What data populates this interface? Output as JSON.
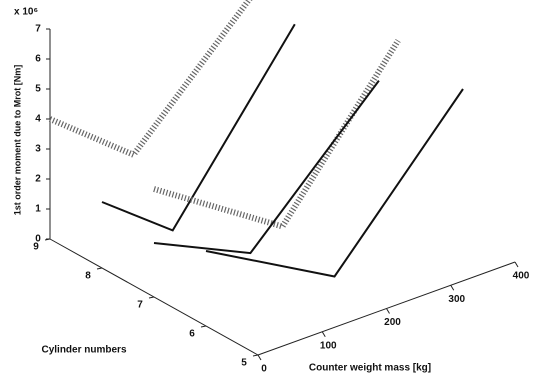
{
  "chart_data": {
    "type": "line3d",
    "z_label": "1st order moment due to Mrot [Nm]",
    "z_multiplier": "x 10⁶",
    "y_label": "Cylinder numbers",
    "x_label": "Counter weight mass [kg]",
    "xlim": [
      0,
      400
    ],
    "xticks": [
      0,
      100,
      200,
      300,
      400
    ],
    "ylim": [
      5,
      9
    ],
    "yticks": [
      5,
      6,
      7,
      8,
      9
    ],
    "zlim": [
      0,
      7
    ],
    "zticks": [
      0,
      1,
      2,
      3,
      4,
      5,
      6,
      7
    ],
    "series": [
      {
        "cylinder": 9,
        "style": "hatched",
        "color": "#666666",
        "x": [
          0,
          130,
          330
        ],
        "values": [
          4.0,
          1.8,
          6.0
        ]
      },
      {
        "cylinder": 8,
        "style": "solid",
        "color": "#111111",
        "x": [
          0,
          110,
          300
        ],
        "values": [
          2.2,
          0.4,
          5.8
        ]
      },
      {
        "cylinder": 7,
        "style": "hatched",
        "color": "#666666",
        "x": [
          0,
          200,
          380
        ],
        "values": [
          3.6,
          0.8,
          5.6
        ]
      },
      {
        "cylinder": 7,
        "style": "solid",
        "color": "#111111",
        "x": [
          0,
          150,
          350
        ],
        "values": [
          1.8,
          0.3,
          4.5
        ]
      },
      {
        "cylinder": 6,
        "style": "solid",
        "color": "#111111",
        "x": [
          0,
          200,
          400
        ],
        "values": [
          2.5,
          0.1,
          4.8
        ]
      }
    ]
  }
}
